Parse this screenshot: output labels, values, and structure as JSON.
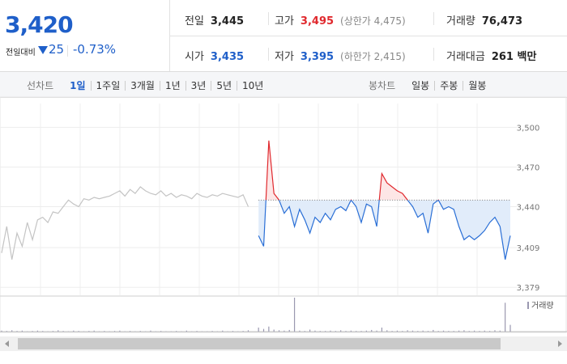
{
  "header": {
    "price": "3,420",
    "change_label": "전일대비",
    "change": "25",
    "change_rate": "-0.73%"
  },
  "stats": [
    {
      "label": "전일",
      "value": "3,445"
    },
    {
      "label": "고가",
      "value": "3,495",
      "note": "(상한가 4,475)"
    },
    {
      "label": "거래량",
      "value": "76,473"
    },
    {
      "label": "시가",
      "value": "3,435"
    },
    {
      "label": "저가",
      "value": "3,395",
      "note": "(하한가 2,415)"
    },
    {
      "label": "거래대금",
      "value": "261 백만"
    }
  ],
  "toolbar": {
    "line_label": "선차트",
    "line_periods": [
      "1일",
      "1주일",
      "3개월",
      "1년",
      "3년",
      "5년",
      "10년"
    ],
    "candle_label": "봉차트",
    "candle_periods": [
      "일봉",
      "주봉",
      "월봉"
    ]
  },
  "chart_data": [
    {
      "type": "line",
      "categories": [
        null,
        null,
        null,
        null,
        null,
        null,
        null,
        null,
        null,
        null,
        null,
        null,
        null,
        null,
        null,
        null,
        null,
        null,
        null,
        null,
        null,
        null,
        null,
        null,
        null,
        null,
        null,
        null,
        null,
        null,
        null,
        null,
        null,
        null,
        null,
        null,
        null,
        null,
        null,
        null,
        null,
        null,
        null,
        null,
        null,
        null,
        null,
        null,
        null,
        null,
        null,
        null,
        null,
        null,
        null,
        null,
        null,
        null,
        null,
        null,
        null,
        null,
        null,
        null,
        null,
        null,
        null,
        null,
        null,
        null,
        null,
        null,
        null,
        null,
        null,
        null,
        null,
        null,
        null,
        null,
        null,
        null,
        null,
        null,
        null,
        null,
        null,
        null,
        null,
        null,
        null,
        null,
        null,
        null,
        null,
        null,
        null,
        null,
        null,
        null
      ],
      "ylim": [
        3373,
        3518
      ],
      "yticks": [
        {
          "value": 3500,
          "label": "3,500"
        },
        {
          "value": 3470,
          "label": "3,470"
        },
        {
          "value": 3440,
          "label": "3,440"
        },
        {
          "value": 3409,
          "label": "3,409"
        },
        {
          "value": 3379,
          "label": "3,379"
        }
      ],
      "grid": true,
      "baseline": 3445,
      "series": [
        {
          "color": "#c4c4c4",
          "values": [
            3405,
            3425,
            3400,
            3420,
            3410,
            3428,
            3415,
            3430,
            3432,
            3428,
            3436,
            3435,
            3440,
            3445,
            3442,
            3440,
            3446,
            3445,
            3447,
            3446,
            3447,
            3448,
            3450,
            3452,
            3448,
            3453,
            3450,
            3455,
            3452,
            3450,
            3449,
            3452,
            3448,
            3450,
            3447,
            3449,
            3448,
            3446,
            3450,
            3448,
            3447,
            3449,
            3448,
            3450,
            3449,
            3448,
            3447,
            3449,
            3440,
            null,
            null,
            null,
            null,
            null,
            null,
            null,
            null,
            null,
            null,
            null,
            null,
            null,
            null,
            null,
            null,
            null,
            null,
            null,
            null,
            null,
            null,
            null,
            null,
            null,
            null,
            null,
            null,
            null,
            null,
            null,
            null,
            null,
            null,
            null,
            null,
            null,
            null,
            null,
            null,
            null,
            null,
            null,
            null,
            null,
            null,
            null,
            null,
            null,
            null,
            null
          ]
        },
        {
          "color_up": "#e0292e",
          "color_down": "#2a6fd6",
          "fill_up": "#fde6e6",
          "fill_down": "#e1ecfa",
          "values": [
            null,
            null,
            null,
            null,
            null,
            null,
            null,
            null,
            null,
            null,
            null,
            null,
            null,
            null,
            null,
            null,
            null,
            null,
            null,
            null,
            null,
            null,
            null,
            null,
            null,
            null,
            null,
            null,
            null,
            null,
            null,
            null,
            null,
            null,
            null,
            null,
            null,
            null,
            null,
            null,
            null,
            null,
            null,
            null,
            null,
            null,
            null,
            null,
            null,
            null,
            3418,
            3410,
            3490,
            3450,
            3445,
            3435,
            3440,
            3425,
            3438,
            3430,
            3420,
            3432,
            3428,
            3435,
            3430,
            3438,
            3440,
            3437,
            3445,
            3440,
            3428,
            3442,
            3440,
            3425,
            3465,
            3458,
            3455,
            3452,
            3450,
            3445,
            3440,
            3432,
            3435,
            3420,
            3442,
            3445,
            3438,
            3440,
            3438,
            3425,
            3415,
            3418,
            3415,
            3418,
            3422,
            3428,
            3432,
            3425,
            3400,
            3418
          ]
        }
      ]
    },
    {
      "type": "bar",
      "ylim": [
        0,
        100
      ],
      "series": [
        {
          "name": "거래량",
          "color": "#9a98b0",
          "values": [
            3,
            2,
            4,
            2,
            3,
            1,
            2,
            3,
            2,
            1,
            2,
            4,
            2,
            1,
            3,
            2,
            1,
            2,
            3,
            1,
            2,
            1,
            2,
            3,
            1,
            2,
            1,
            2,
            1,
            3,
            1,
            2,
            1,
            1,
            2,
            1,
            3,
            1,
            2,
            1,
            1,
            2,
            1,
            3,
            1,
            2,
            1,
            2,
            4,
            0,
            12,
            8,
            15,
            6,
            4,
            3,
            5,
            100,
            3,
            2,
            6,
            3,
            2,
            2,
            3,
            2,
            4,
            2,
            3,
            2,
            2,
            3,
            5,
            3,
            12,
            4,
            2,
            3,
            2,
            4,
            3,
            2,
            3,
            2,
            5,
            2,
            3,
            2,
            2,
            3,
            4,
            2,
            3,
            2,
            3,
            2,
            4,
            3,
            85,
            20
          ]
        }
      ]
    }
  ]
}
